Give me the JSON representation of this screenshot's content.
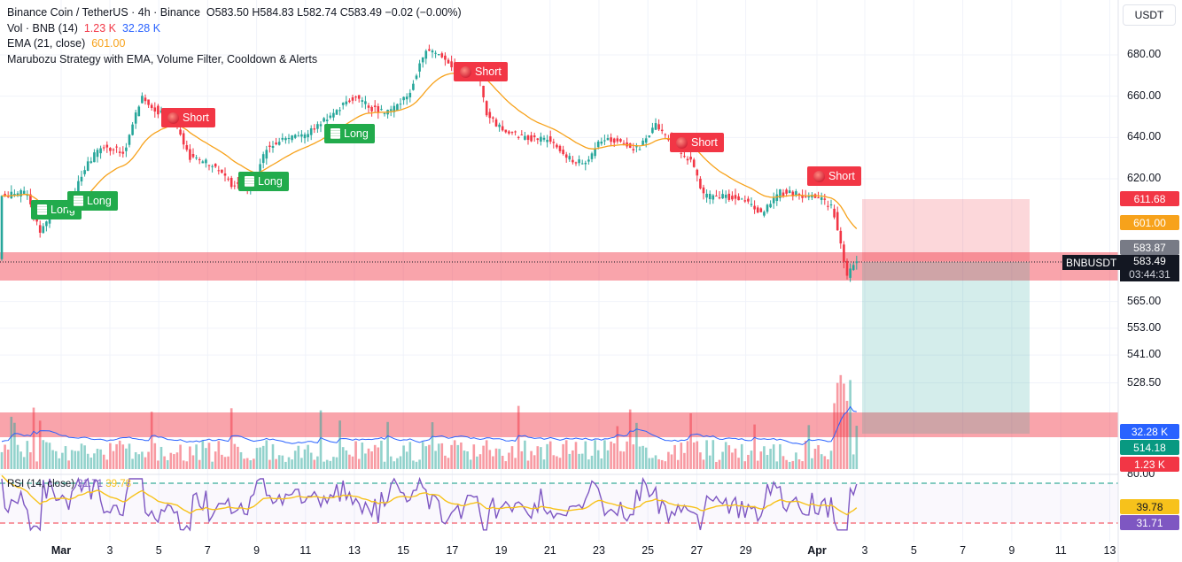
{
  "legend": {
    "line1": "Binance Coin / TetherUS · 4h · Binance",
    "ohlc": "O583.50  H584.83  L582.74  C583.49  −0.02 (−0.00%)",
    "vol_label": "Vol · BNB (14)",
    "vol_a": "1.23 K",
    "vol_b": "32.28 K",
    "ema_label": "EMA (21, close)",
    "ema_val": "601.00",
    "strategy": "Marubozu Strategy with EMA, Volume Filter, Cooldown & Alerts"
  },
  "rsi_legend": {
    "label": "RSI (14, close)",
    "val1": "31.71",
    "val2": "39.78"
  },
  "currency_button": "USDT",
  "price_axis": {
    "ticks": [
      {
        "label": "680.00",
        "price": 680
      },
      {
        "label": "660.00",
        "price": 660
      },
      {
        "label": "640.00",
        "price": 640
      },
      {
        "label": "620.00",
        "price": 620
      },
      {
        "label": "565.00",
        "price": 565
      },
      {
        "label": "553.00",
        "price": 553
      },
      {
        "label": "541.00",
        "price": 541
      },
      {
        "label": "528.50",
        "price": 528.5
      }
    ],
    "rsi_tick": "80.00"
  },
  "price_tags": {
    "tp": "611.68",
    "ema": "601.00",
    "prev": "583.87",
    "symbol": "BNBUSDT",
    "last": "583.49",
    "countdown": "03:44:31",
    "vol_ma": "32.28 K",
    "sl": "514.18",
    "vol": "1.23 K",
    "rsi_ma": "39.78",
    "rsi": "31.71"
  },
  "time_axis": [
    "Mar",
    "3",
    "5",
    "7",
    "9",
    "11",
    "13",
    "15",
    "17",
    "19",
    "21",
    "23",
    "25",
    "27",
    "29",
    "Apr",
    "3",
    "5",
    "7",
    "9",
    "11",
    "13"
  ],
  "signals": [
    {
      "type": "short",
      "label": "Short"
    },
    {
      "type": "long",
      "label": "Long"
    },
    {
      "type": "long",
      "label": "Long"
    },
    {
      "type": "long",
      "label": "Long"
    },
    {
      "type": "short",
      "label": "Short"
    },
    {
      "type": "long",
      "label": "Long"
    },
    {
      "type": "short",
      "label": "Short"
    },
    {
      "type": "short",
      "label": "Short"
    }
  ],
  "colors": {
    "up": "#26a69a",
    "down": "#f23645",
    "ema": "#f7a21b",
    "rsi": "#7e57c2",
    "rsi_ma": "#f7c21b",
    "vol_ma": "#2962ff"
  }
}
